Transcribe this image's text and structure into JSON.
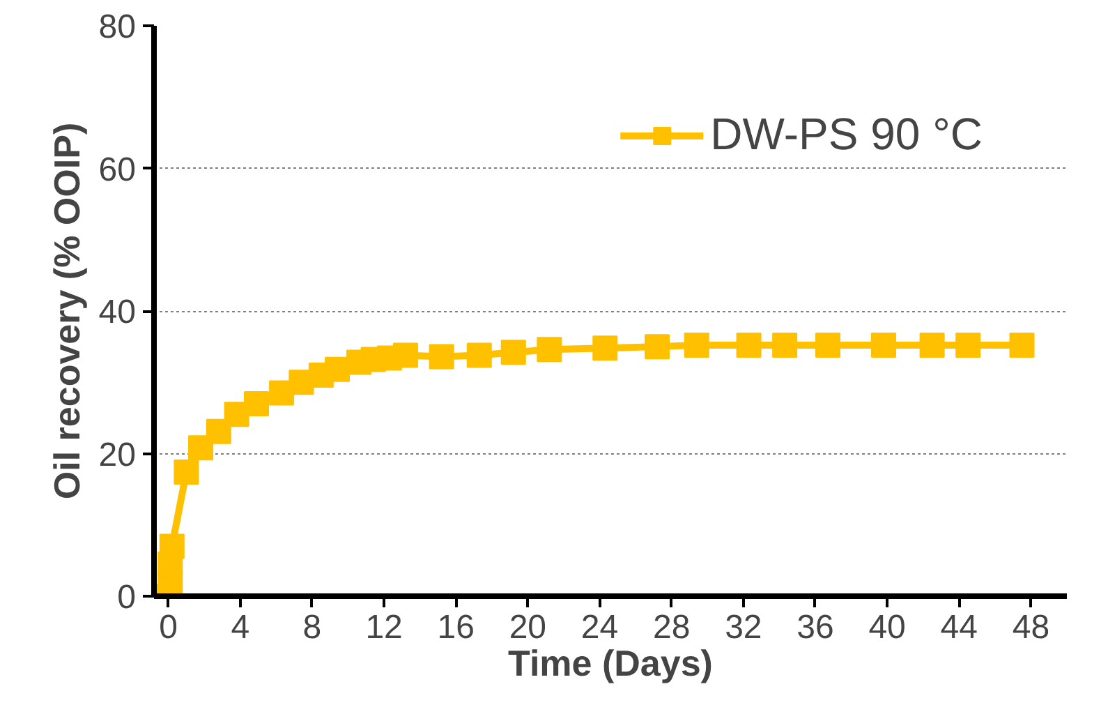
{
  "chart_data": {
    "type": "line",
    "xlabel": "Time (Days)",
    "ylabel": "Oil recovery (% OOIP)",
    "x": [
      0,
      0.1,
      0.1,
      0.2,
      1,
      1.8,
      2.8,
      3.8,
      4.9,
      6.3,
      7.4,
      8.5,
      9.4,
      10.6,
      11.4,
      12.3,
      13.2,
      15.2,
      17.3,
      19.2,
      21.2,
      24.3,
      27.2,
      29.4,
      32.3,
      34.3,
      36.7,
      39.8,
      42.5,
      44.5,
      47.5
    ],
    "series": [
      {
        "name": "DW-PS 90 °C",
        "color": "#ffc000",
        "values": [
          0,
          2,
          4.5,
          7,
          17.4,
          20.8,
          23.1,
          25.5,
          27,
          28.5,
          30,
          31,
          31.8,
          32.8,
          33.2,
          33.4,
          33.8,
          33.6,
          33.8,
          34.2,
          34.6,
          34.8,
          35,
          35.2,
          35.2,
          35.2,
          35.2,
          35.2,
          35.2,
          35.2,
          35.2
        ]
      }
    ],
    "xlim": [
      -0.8,
      50
    ],
    "ylim": [
      0,
      80
    ],
    "xticks": [
      0,
      4,
      8,
      12,
      16,
      20,
      24,
      28,
      32,
      36,
      40,
      44,
      48
    ],
    "yticks": [
      0,
      20,
      40,
      60,
      80
    ],
    "grid": "y",
    "legend": "top right",
    "marker": "square",
    "line_style": "solid"
  }
}
